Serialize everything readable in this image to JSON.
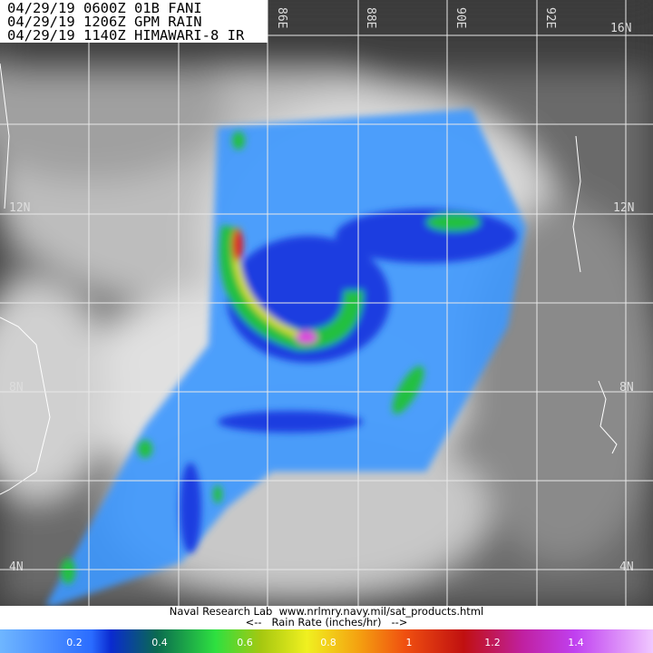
{
  "header": {
    "lines": [
      "04/29/19 0600Z 01B FANI",
      "04/29/19 1206Z GPM RAIN",
      "04/29/19 1140Z HIMAWARI-8 IR"
    ]
  },
  "grid": {
    "longitudes": [
      "86E",
      "88E",
      "90E",
      "92E",
      "16N"
    ],
    "latitudes": [
      "12N",
      "8N",
      "4N"
    ],
    "latitudes_right": [
      "12N",
      "8N",
      "4N"
    ]
  },
  "footer": {
    "credit": "Naval Research Lab  www.nrlmry.navy.mil/sat_products.html",
    "legend_title": "<--   Rain Rate (inches/hr)   -->"
  },
  "colorbar": {
    "ticks": [
      "0.2",
      "0.4",
      "0.6",
      "0.8",
      "1",
      "1.2",
      "1.4"
    ],
    "unit": "inches/hr"
  }
}
